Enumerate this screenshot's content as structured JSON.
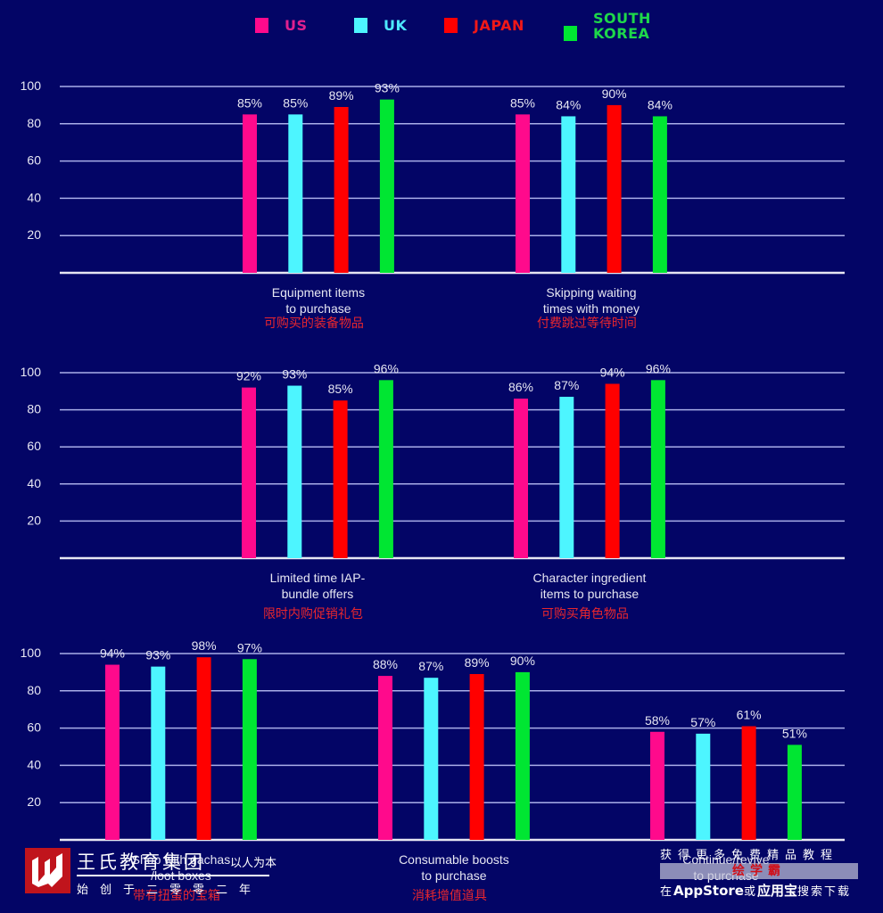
{
  "legend": [
    {
      "label": "US",
      "color": "#ff0a8c",
      "text_color": "#e0208f"
    },
    {
      "label": "UK",
      "color": "#4df5ff",
      "text_color": "#4de8ff"
    },
    {
      "label": "JAPAN",
      "color": "#ff0000",
      "text_color": "#f01818"
    },
    {
      "label": "SOUTH\nKOREA",
      "color": "#00e632",
      "text_color": "#1ed84a"
    }
  ],
  "chart_data": {
    "type": "bar",
    "title": "",
    "xlabel": "",
    "ylabel": "",
    "ylim": [
      0,
      100
    ],
    "yticks": [
      20,
      40,
      60,
      80,
      100
    ],
    "grid": true,
    "legend_position": "top",
    "series_names": [
      "US",
      "UK",
      "JAPAN",
      "SOUTH KOREA"
    ],
    "panels": [
      {
        "categories": [
          {
            "label_en": "Equipment items\nto purchase",
            "label_zh": "可购买的装备物品",
            "values": [
              85,
              85,
              89,
              93
            ],
            "labels": [
              "85%",
              "85%",
              "89%",
              "93%"
            ]
          },
          {
            "label_en": "Skipping waiting\ntimes with money",
            "label_zh": "付费跳过等待时间",
            "values": [
              85,
              84,
              90,
              84
            ],
            "labels": [
              "85%",
              "84%",
              "90%",
              "84%"
            ]
          }
        ]
      },
      {
        "categories": [
          {
            "label_en": "Limited time IAP-\nbundle offers",
            "label_zh": "限时内购促销礼包",
            "values": [
              92,
              93,
              85,
              96
            ],
            "labels": [
              "92%",
              "93%",
              "85%",
              "96%"
            ]
          },
          {
            "label_en": "Character ingredient\nitems to purchase",
            "label_zh": "可购买角色物品",
            "values": [
              86,
              87,
              94,
              96
            ],
            "labels": [
              "86%",
              "87%",
              "94%",
              "96%"
            ]
          }
        ]
      },
      {
        "categories": [
          {
            "label_en": "Shop with gachas\n/loot boxes",
            "label_zh": "带有扭蛋的宝箱",
            "values": [
              94,
              93,
              98,
              97
            ],
            "labels": [
              "94%",
              "93%",
              "98%",
              "97%"
            ]
          },
          {
            "label_en": "Consumable boosts\nto purchase",
            "label_zh": "消耗增值道具",
            "values": [
              88,
              87,
              89,
              90
            ],
            "labels": [
              "88%",
              "87%",
              "89%",
              "90%"
            ]
          },
          {
            "label_en": "Continue/revive\nto purchase",
            "label_zh": "",
            "values": [
              58,
              57,
              61,
              51
            ],
            "labels": [
              "58%",
              "57%",
              "61%",
              "51%"
            ]
          }
        ]
      }
    ]
  },
  "watermark_left": {
    "title": "王氏教育集团",
    "motto": "以人为本",
    "subtitle": "始创于二零零二年"
  },
  "watermark_right": {
    "top": "获得更多免费精品教程",
    "band": "绘学霸",
    "bottom_prefix": "在",
    "bottom_app1": "AppStore",
    "bottom_mid": "或",
    "bottom_app2": "应用宝",
    "bottom_suffix": "搜索下载"
  }
}
